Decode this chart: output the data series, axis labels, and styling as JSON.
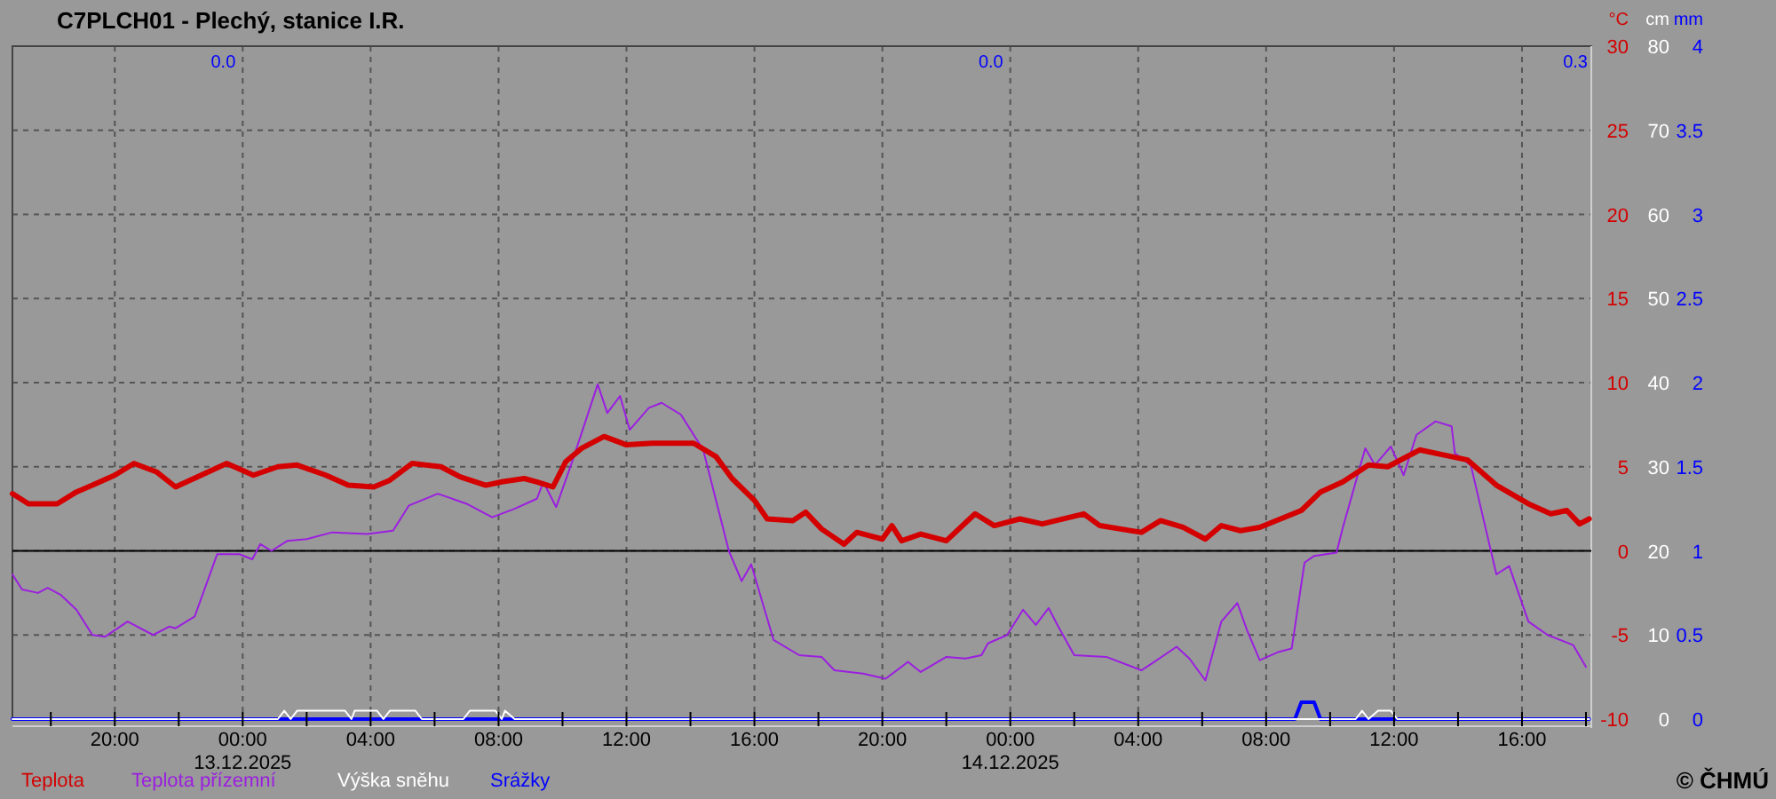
{
  "chart_data": {
    "type": "line",
    "title": "C7PLCH01 - Plechý, stanice I.R.",
    "ylabel": "°C",
    "y2label": "cm",
    "y3label": "mm",
    "xlim": [
      "2025-12-12T16:48",
      "2025-12-14T18:10"
    ],
    "xticks": [
      {
        "value": "2025-12-12T18:00",
        "label": null
      },
      {
        "value": "2025-12-12T20:00",
        "label": "20:00"
      },
      {
        "value": "2025-12-12T22:00",
        "label": null
      },
      {
        "value": "2025-12-13T00:00",
        "label": "00:00\n13.12.2025"
      },
      {
        "value": "2025-12-13T02:00",
        "label": null
      },
      {
        "value": "2025-12-13T04:00",
        "label": "04:00"
      },
      {
        "value": "2025-12-13T06:00",
        "label": null
      },
      {
        "value": "2025-12-13T08:00",
        "label": "08:00"
      },
      {
        "value": "2025-12-13T10:00",
        "label": null
      },
      {
        "value": "2025-12-13T12:00",
        "label": "12:00"
      },
      {
        "value": "2025-12-13T14:00",
        "label": null
      },
      {
        "value": "2025-12-13T16:00",
        "label": "16:00"
      },
      {
        "value": "2025-12-13T18:00",
        "label": null
      },
      {
        "value": "2025-12-13T20:00",
        "label": "20:00"
      },
      {
        "value": "2025-12-13T22:00",
        "label": null
      },
      {
        "value": "2025-12-14T00:00",
        "label": "00:00\n14.12.2025"
      },
      {
        "value": "2025-12-14T02:00",
        "label": null
      },
      {
        "value": "2025-12-14T04:00",
        "label": "04:00"
      },
      {
        "value": "2025-12-14T06:00",
        "label": null
      },
      {
        "value": "2025-12-14T08:00",
        "label": "08:00"
      },
      {
        "value": "2025-12-14T10:00",
        "label": null
      },
      {
        "value": "2025-12-14T12:00",
        "label": "12:00"
      },
      {
        "value": "2025-12-14T14:00",
        "label": null
      },
      {
        "value": "2025-12-14T16:00",
        "label": "16:00"
      },
      {
        "value": "2025-12-14T18:00",
        "label": null
      }
    ],
    "ylim": [
      -10,
      30
    ],
    "yticks": [
      -10,
      -5,
      0,
      5,
      10,
      15,
      20,
      25,
      30
    ],
    "y2lim": [
      0,
      80
    ],
    "y2ticks": [
      0,
      10,
      20,
      30,
      40,
      50,
      60,
      70,
      80
    ],
    "y3lim": [
      0,
      4
    ],
    "y3ticks": [
      0,
      0.5,
      1,
      1.5,
      2,
      2.5,
      3,
      3.5,
      4
    ],
    "grid": true,
    "legend": "bottom",
    "ref_lines": [
      {
        "axis": "y",
        "value": 0,
        "color": "#000000"
      }
    ],
    "series": [
      {
        "name": "Teplota",
        "color": "#d40000",
        "x": [
          "2025-12-12T16:48",
          "2025-12-12T17:18",
          "2025-12-12T18:12",
          "2025-12-12T18:48",
          "2025-12-12T19:18",
          "2025-12-12T20:00",
          "2025-12-12T20:36",
          "2025-12-12T21:18",
          "2025-12-12T21:54",
          "2025-12-12T22:42",
          "2025-12-12T23:30",
          "2025-12-13T00:20",
          "2025-12-13T01:06",
          "2025-12-13T01:42",
          "2025-12-13T02:36",
          "2025-12-13T03:18",
          "2025-12-13T04:06",
          "2025-12-13T04:36",
          "2025-12-13T05:18",
          "2025-12-13T06:12",
          "2025-12-13T06:48",
          "2025-12-13T07:36",
          "2025-12-13T08:06",
          "2025-12-13T08:48",
          "2025-12-13T09:12",
          "2025-12-13T09:42",
          "2025-12-13T10:06",
          "2025-12-13T10:36",
          "2025-12-13T11:18",
          "2025-12-13T12:00",
          "2025-12-13T12:48",
          "2025-12-13T14:06",
          "2025-12-13T14:48",
          "2025-12-13T15:18",
          "2025-12-13T16:00",
          "2025-12-13T16:24",
          "2025-12-13T17:12",
          "2025-12-13T17:36",
          "2025-12-13T18:06",
          "2025-12-13T18:48",
          "2025-12-13T19:12",
          "2025-12-13T20:00",
          "2025-12-13T20:18",
          "2025-12-13T20:36",
          "2025-12-13T21:12",
          "2025-12-13T22:00",
          "2025-12-13T22:54",
          "2025-12-13T23:30",
          "2025-12-14T00:18",
          "2025-12-14T01:00",
          "2025-12-14T02:18",
          "2025-12-14T02:48",
          "2025-12-14T04:06",
          "2025-12-14T04:42",
          "2025-12-14T05:24",
          "2025-12-14T06:06",
          "2025-12-14T06:36",
          "2025-12-14T07:12",
          "2025-12-14T07:48",
          "2025-12-14T09:06",
          "2025-12-14T09:42",
          "2025-12-14T10:24",
          "2025-12-14T11:12",
          "2025-12-14T11:48",
          "2025-12-14T12:48",
          "2025-12-14T14:18",
          "2025-12-14T15:12",
          "2025-12-14T16:12",
          "2025-12-14T16:54",
          "2025-12-14T17:24",
          "2025-12-14T17:48",
          "2025-12-14T18:06"
        ],
        "values": [
          3.4,
          2.8,
          2.8,
          3.5,
          3.9,
          4.5,
          5.2,
          4.7,
          3.8,
          4.5,
          5.2,
          4.5,
          5.0,
          5.1,
          4.5,
          3.9,
          3.8,
          4.2,
          5.2,
          5.0,
          4.4,
          3.9,
          4.1,
          4.3,
          4.1,
          3.8,
          5.3,
          6.1,
          6.8,
          6.3,
          6.4,
          6.4,
          5.6,
          4.3,
          3.0,
          1.9,
          1.8,
          2.3,
          1.3,
          0.4,
          1.1,
          0.7,
          1.5,
          0.6,
          1.0,
          0.6,
          2.2,
          1.5,
          1.9,
          1.6,
          2.2,
          1.5,
          1.1,
          1.8,
          1.4,
          0.7,
          1.5,
          1.2,
          1.4,
          2.4,
          3.5,
          4.1,
          5.1,
          5.0,
          6.0,
          5.4,
          3.9,
          2.8,
          2.2,
          2.4,
          1.6,
          1.9
        ]
      },
      {
        "name": "Teplota přízemní",
        "color": "#9b1ee0",
        "x": [
          "2025-12-12T16:48",
          "2025-12-12T17:06",
          "2025-12-12T17:36",
          "2025-12-12T17:54",
          "2025-12-12T18:18",
          "2025-12-12T18:48",
          "2025-12-12T19:18",
          "2025-12-12T19:42",
          "2025-12-12T20:24",
          "2025-12-12T21:12",
          "2025-12-12T21:42",
          "2025-12-12T21:54",
          "2025-12-12T22:30",
          "2025-12-12T23:12",
          "2025-12-12T23:54",
          "2025-12-13T00:18",
          "2025-12-13T00:33",
          "2025-12-13T00:54",
          "2025-12-13T01:24",
          "2025-12-13T02:00",
          "2025-12-13T02:48",
          "2025-12-13T03:54",
          "2025-12-13T04:42",
          "2025-12-13T05:12",
          "2025-12-13T06:06",
          "2025-12-13T07:00",
          "2025-12-13T07:48",
          "2025-12-13T08:30",
          "2025-12-13T09:12",
          "2025-12-13T09:24",
          "2025-12-13T09:48",
          "2025-12-13T10:18",
          "2025-12-13T11:06",
          "2025-12-13T11:24",
          "2025-12-13T11:48",
          "2025-12-13T12:06",
          "2025-12-13T12:42",
          "2025-12-13T13:06",
          "2025-12-13T13:42",
          "2025-12-13T14:24",
          "2025-12-13T15:12",
          "2025-12-13T15:36",
          "2025-12-13T15:54",
          "2025-12-13T16:36",
          "2025-12-13T17:24",
          "2025-12-13T18:06",
          "2025-12-13T18:30",
          "2025-12-13T19:24",
          "2025-12-13T20:06",
          "2025-12-13T20:48",
          "2025-12-13T21:12",
          "2025-12-13T22:00",
          "2025-12-13T22:36",
          "2025-12-13T23:06",
          "2025-12-13T23:18",
          "2025-12-13T23:54",
          "2025-12-14T00:24",
          "2025-12-14T00:48",
          "2025-12-14T01:12",
          "2025-12-14T01:30",
          "2025-12-14T02:00",
          "2025-12-14T03:00",
          "2025-12-14T04:06",
          "2025-12-14T04:30",
          "2025-12-14T05:12",
          "2025-12-14T05:36",
          "2025-12-14T06:06",
          "2025-12-14T06:36",
          "2025-12-14T07:06",
          "2025-12-14T07:24",
          "2025-12-14T07:48",
          "2025-12-14T08:24",
          "2025-12-14T08:48",
          "2025-12-14T09:12",
          "2025-12-14T09:30",
          "2025-12-14T10:12",
          "2025-12-14T10:24",
          "2025-12-14T11:06",
          "2025-12-14T11:24",
          "2025-12-14T11:54",
          "2025-12-14T12:18",
          "2025-12-14T12:42",
          "2025-12-14T13:18",
          "2025-12-14T13:48",
          "2025-12-14T13:54",
          "2025-12-14T14:24",
          "2025-12-14T15:12",
          "2025-12-14T15:36",
          "2025-12-14T16:12",
          "2025-12-14T16:48",
          "2025-12-14T17:36",
          "2025-12-14T18:00"
        ],
        "values": [
          -1.4,
          -2.3,
          -2.5,
          -2.2,
          -2.6,
          -3.5,
          -5.0,
          -5.1,
          -4.2,
          -5.0,
          -4.5,
          -4.6,
          -3.9,
          -0.2,
          -0.2,
          -0.5,
          0.4,
          0.0,
          0.6,
          0.7,
          1.1,
          1.0,
          1.2,
          2.7,
          3.4,
          2.8,
          2.0,
          2.5,
          3.1,
          4.1,
          2.6,
          5.3,
          9.9,
          8.2,
          9.2,
          7.2,
          8.5,
          8.8,
          8.1,
          6.0,
          0.0,
          -1.8,
          -0.8,
          -5.3,
          -6.2,
          -6.3,
          -7.1,
          -7.3,
          -7.6,
          -6.6,
          -7.2,
          -6.3,
          -6.4,
          -6.2,
          -5.5,
          -5.0,
          -3.5,
          -4.4,
          -3.4,
          -4.5,
          -6.2,
          -6.3,
          -7.1,
          -6.6,
          -5.7,
          -6.4,
          -7.7,
          -4.2,
          -3.1,
          -4.7,
          -6.5,
          -6.0,
          -5.8,
          -0.7,
          -0.3,
          -0.1,
          1.4,
          6.1,
          5.1,
          6.2,
          4.5,
          6.9,
          7.7,
          7.4,
          5.8,
          5.1,
          -1.4,
          -0.9,
          -4.2,
          -5.0,
          -5.6,
          -6.9
        ]
      },
      {
        "name": "Výška sněhu",
        "color": "#ffffff",
        "axis": "y2",
        "x": [
          "2025-12-12T16:48",
          "2025-12-13T01:06",
          "2025-12-13T01:18",
          "2025-12-13T01:30",
          "2025-12-13T01:42",
          "2025-12-13T03:12",
          "2025-12-13T03:24",
          "2025-12-13T03:30",
          "2025-12-13T04:12",
          "2025-12-13T04:24",
          "2025-12-13T04:36",
          "2025-12-13T05:24",
          "2025-12-13T05:36",
          "2025-12-13T06:54",
          "2025-12-13T07:06",
          "2025-12-13T07:54",
          "2025-12-13T08:06",
          "2025-12-13T08:12",
          "2025-12-13T08:30",
          "2025-12-14T10:48",
          "2025-12-14T11:00",
          "2025-12-14T11:12",
          "2025-12-14T11:30",
          "2025-12-14T11:54",
          "2025-12-14T12:06",
          "2025-12-14T18:06"
        ],
        "values": [
          0,
          0,
          1,
          0,
          1,
          1,
          0,
          1,
          1,
          0,
          1,
          1,
          0,
          0,
          1,
          1,
          0,
          1,
          0,
          0,
          1,
          0,
          1,
          1,
          0,
          0
        ]
      },
      {
        "name": "Srážky",
        "color": "#0000ff",
        "axis": "y3",
        "x": [
          "2025-12-12T16:48",
          "2025-12-14T08:54",
          "2025-12-14T09:06",
          "2025-12-14T09:30",
          "2025-12-14T09:42",
          "2025-12-14T18:06"
        ],
        "values": [
          0,
          0,
          0.1,
          0.1,
          0,
          0
        ]
      }
    ],
    "annotations": [
      "0.0",
      "0.0",
      "0.3",
      "© ČHMÚ"
    ]
  }
}
